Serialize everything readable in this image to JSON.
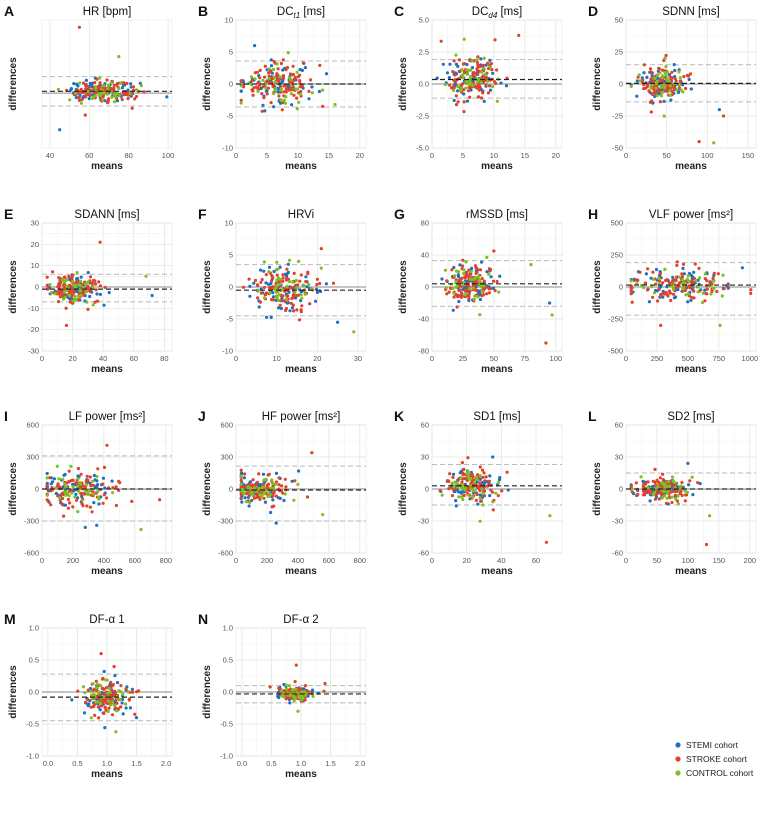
{
  "figure": {
    "xlabel": "means",
    "ylabel": "differences",
    "legend": [
      {
        "name": "STEMI cohort",
        "color": "#1f6fbf"
      },
      {
        "name": "STROKE cohort",
        "color": "#e0422b"
      },
      {
        "name": "CONTROL cohort",
        "color": "#7dc021"
      }
    ]
  },
  "chart_data": [
    {
      "type": "scatter",
      "letter": "A",
      "title": "HR [bpm]",
      "xlabel": "means",
      "ylabel": "differences",
      "xlim": [
        36,
        102
      ],
      "xticks": [
        40,
        60,
        80,
        100
      ],
      "ylim": [
        -1.5,
        2.0
      ],
      "yticks": [],
      "mean_line": 0.05,
      "loa": [
        0.45,
        -0.35
      ],
      "x_center": 68,
      "x_spread": 10,
      "y_spread": 0.15,
      "outliers": [
        [
          55,
          1.8
        ],
        [
          75,
          1.0
        ],
        [
          45,
          -1.0
        ],
        [
          58,
          -0.6
        ]
      ]
    },
    {
      "type": "scatter",
      "letter": "B",
      "title": "DC",
      "title_sub": "t1",
      "title_suffix": " [ms]",
      "xlabel": "means",
      "ylabel": "differences",
      "xlim": [
        0,
        21
      ],
      "xticks": [
        0,
        5,
        10,
        15,
        20
      ],
      "ylim": [
        -10,
        10
      ],
      "yticks": [
        -10,
        -5,
        0,
        5,
        10
      ],
      "mean_line": 0.0,
      "loa": [
        3.6,
        -3.6
      ],
      "x_center": 6.5,
      "x_spread": 2.8,
      "y_spread": 1.8,
      "outliers": [
        [
          14,
          -3.5
        ],
        [
          16,
          -3.2
        ],
        [
          3,
          6
        ]
      ]
    },
    {
      "type": "scatter",
      "letter": "C",
      "title": "DC",
      "title_sub": "d4",
      "title_suffix": " [ms]",
      "xlabel": "means",
      "ylabel": "differences",
      "xlim": [
        0,
        21
      ],
      "xticks": [
        0,
        5,
        10,
        15,
        20
      ],
      "ylim": [
        -5,
        5
      ],
      "yticks": [
        -5.0,
        -2.5,
        0.0,
        2.5,
        5.0
      ],
      "mean_line": 0.35,
      "loa": [
        1.9,
        -1.1
      ],
      "x_center": 6.5,
      "x_spread": 2.2,
      "y_spread": 0.75,
      "outliers": [
        [
          14,
          3.8
        ],
        [
          5.2,
          3.5
        ]
      ]
    },
    {
      "type": "scatter",
      "letter": "D",
      "title": "SDNN [ms]",
      "xlabel": "means",
      "ylabel": "differences",
      "xlim": [
        0,
        160
      ],
      "xticks": [
        0,
        50,
        100,
        150
      ],
      "ylim": [
        -50,
        50
      ],
      "yticks": [
        -50,
        -25,
        0,
        25,
        50
      ],
      "mean_line": 0.5,
      "loa": [
        15,
        -14
      ],
      "x_center": 45,
      "x_spread": 14,
      "y_spread": 6,
      "outliers": [
        [
          90,
          -45
        ],
        [
          108,
          -46
        ],
        [
          115,
          -20
        ],
        [
          120,
          -25
        ]
      ]
    },
    {
      "type": "scatter",
      "letter": "E",
      "title": "SDANN [ms]",
      "xlabel": "means",
      "ylabel": "differences",
      "xlim": [
        0,
        85
      ],
      "xticks": [
        0,
        20,
        40,
        60,
        80
      ],
      "ylim": [
        -30,
        30
      ],
      "yticks": [
        -30,
        -20,
        -10,
        0,
        10,
        20,
        30
      ],
      "mean_line": -1.0,
      "loa": [
        6,
        -7
      ],
      "x_center": 20,
      "x_spread": 8,
      "y_spread": 3.5,
      "outliers": [
        [
          38,
          21
        ],
        [
          68,
          5
        ],
        [
          72,
          -4
        ],
        [
          16,
          -18
        ]
      ]
    },
    {
      "type": "scatter",
      "letter": "F",
      "title": "HRVi",
      "xlabel": "means",
      "ylabel": "differences",
      "xlim": [
        0,
        32
      ],
      "xticks": [
        0,
        10,
        20,
        30
      ],
      "ylim": [
        -10,
        10
      ],
      "yticks": [
        -10,
        -5,
        0,
        5,
        10
      ],
      "mean_line": -0.5,
      "loa": [
        3.5,
        -4.5
      ],
      "x_center": 12,
      "x_spread": 4,
      "y_spread": 1.8,
      "outliers": [
        [
          21,
          6
        ],
        [
          29,
          -7
        ],
        [
          25,
          -5.5
        ]
      ]
    },
    {
      "type": "scatter",
      "letter": "G",
      "title": "rMSSD [ms]",
      "xlabel": "means",
      "ylabel": "differences",
      "xlim": [
        0,
        105
      ],
      "xticks": [
        0,
        25,
        50,
        75,
        100
      ],
      "ylim": [
        -80,
        80
      ],
      "yticks": [
        -80,
        -40,
        0,
        40,
        80
      ],
      "mean_line": 4,
      "loa": [
        33,
        -24
      ],
      "x_center": 32,
      "x_spread": 10,
      "y_spread": 12,
      "outliers": [
        [
          92,
          -70
        ],
        [
          97,
          -35
        ],
        [
          95,
          -20
        ],
        [
          50,
          45
        ],
        [
          80,
          28
        ]
      ]
    },
    {
      "type": "scatter",
      "letter": "H",
      "title": "VLF power [ms²]",
      "xlabel": "means",
      "ylabel": "differences",
      "xlim": [
        0,
        1050
      ],
      "xticks": [
        0,
        250,
        500,
        750,
        1000
      ],
      "ylim": [
        -500,
        500
      ],
      "yticks": [
        -500,
        -250,
        0,
        250,
        500
      ],
      "mean_line": 15,
      "loa": [
        190,
        -220
      ],
      "x_center": 400,
      "x_spread": 200,
      "y_spread": 60,
      "outliers": [
        [
          280,
          -300
        ],
        [
          760,
          -300
        ],
        [
          940,
          150
        ],
        [
          560,
          180
        ]
      ]
    },
    {
      "type": "scatter",
      "letter": "I",
      "title": "LF power [ms²]",
      "xlabel": "means",
      "ylabel": "differences",
      "xlim": [
        0,
        840
      ],
      "xticks": [
        0,
        200,
        400,
        600,
        800
      ],
      "ylim": [
        -600,
        600
      ],
      "yticks": [
        -600,
        -300,
        0,
        300,
        600
      ],
      "mean_line": 0,
      "loa": [
        310,
        -300
      ],
      "x_center": 250,
      "x_spread": 110,
      "y_spread": 80,
      "outliers": [
        [
          420,
          410
        ],
        [
          640,
          -380
        ],
        [
          280,
          -360
        ],
        [
          760,
          -100
        ]
      ]
    },
    {
      "type": "scatter",
      "letter": "J",
      "title": "HF power [ms²]",
      "xlabel": "means",
      "ylabel": "differences",
      "xlim": [
        0,
        840
      ],
      "xticks": [
        0,
        200,
        400,
        600,
        800
      ],
      "ylim": [
        -600,
        600
      ],
      "yticks": [
        -600,
        -300,
        0,
        300,
        600
      ],
      "mean_line": -10,
      "loa": [
        215,
        -300
      ],
      "x_center": 150,
      "x_spread": 90,
      "y_spread": 60,
      "outliers": [
        [
          490,
          340
        ],
        [
          560,
          -240
        ],
        [
          260,
          -320
        ]
      ]
    },
    {
      "type": "scatter",
      "letter": "K",
      "title": "SD1 [ms]",
      "xlabel": "means",
      "ylabel": "differences",
      "xlim": [
        0,
        75
      ],
      "xticks": [
        0,
        20,
        40,
        60
      ],
      "ylim": [
        -60,
        60
      ],
      "yticks": [
        -60,
        -30,
        0,
        30,
        60
      ],
      "mean_line": 3,
      "loa": [
        23,
        -15
      ],
      "x_center": 22,
      "x_spread": 7,
      "y_spread": 8,
      "outliers": [
        [
          66,
          -50
        ],
        [
          68,
          -25
        ],
        [
          35,
          30
        ]
      ]
    },
    {
      "type": "scatter",
      "letter": "L",
      "title": "SD2 [ms]",
      "xlabel": "means",
      "ylabel": "differences",
      "xlim": [
        0,
        210
      ],
      "xticks": [
        0,
        50,
        100,
        150,
        200
      ],
      "ylim": [
        -60,
        60
      ],
      "yticks": [
        -60,
        -30,
        0,
        30,
        60
      ],
      "mean_line": 0,
      "loa": [
        15,
        -15
      ],
      "x_center": 60,
      "x_spread": 22,
      "y_spread": 5,
      "outliers": [
        [
          130,
          -52
        ],
        [
          135,
          -25
        ],
        [
          100,
          24
        ]
      ]
    },
    {
      "type": "scatter",
      "letter": "M",
      "title": "DF-α 1",
      "xlabel": "means",
      "ylabel": "differences",
      "xlim": [
        -0.1,
        2.1
      ],
      "xticks": [
        0.0,
        0.5,
        1.0,
        1.5,
        2.0
      ],
      "ylim": [
        -1.0,
        1.0
      ],
      "yticks": [
        -1.0,
        -0.5,
        0.0,
        0.5,
        1.0
      ],
      "mean_line": -0.08,
      "loa": [
        0.28,
        -0.45
      ],
      "x_center": 1.0,
      "x_spread": 0.2,
      "y_spread": 0.13,
      "outliers": [
        [
          0.9,
          0.6
        ],
        [
          1.15,
          -0.62
        ],
        [
          1.5,
          -0.4
        ]
      ]
    },
    {
      "type": "scatter",
      "letter": "N",
      "title": "DF-α 2",
      "xlabel": "means",
      "ylabel": "differences",
      "xlim": [
        -0.1,
        2.1
      ],
      "xticks": [
        0.0,
        0.5,
        1.0,
        1.5,
        2.0
      ],
      "ylim": [
        -1.0,
        1.0
      ],
      "yticks": [
        -1.0,
        -0.5,
        0.0,
        0.5,
        1.0
      ],
      "mean_line": -0.03,
      "loa": [
        0.1,
        -0.17
      ],
      "x_center": 0.9,
      "x_spread": 0.13,
      "y_spread": 0.05,
      "outliers": [
        [
          0.92,
          0.42
        ],
        [
          0.95,
          -0.3
        ]
      ]
    }
  ]
}
